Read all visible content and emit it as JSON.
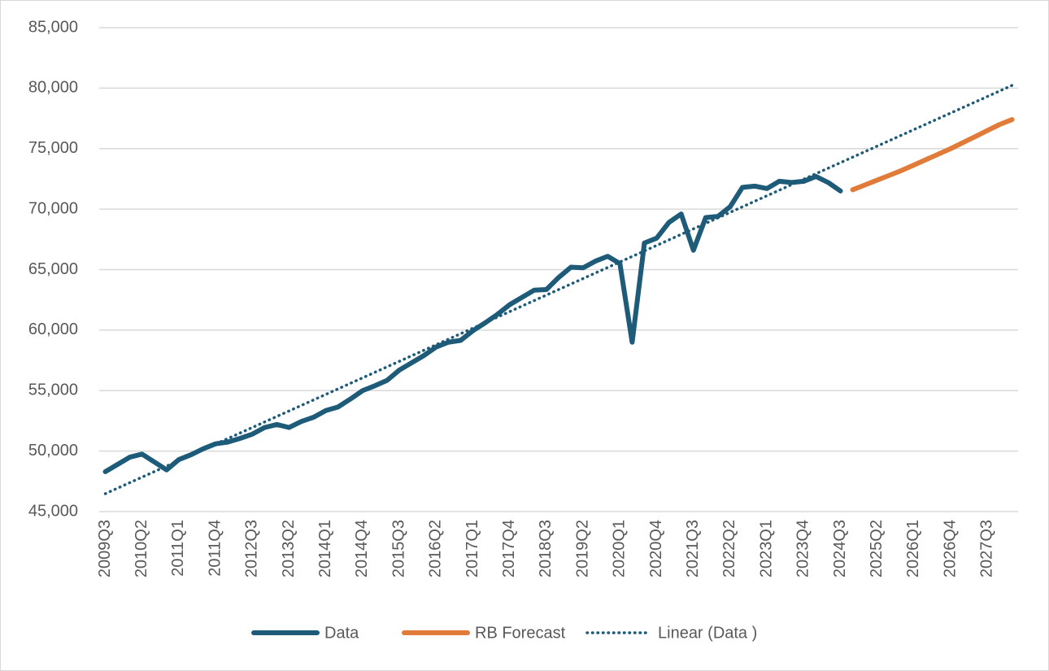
{
  "chart_data": {
    "type": "line",
    "categories": [
      "2009Q3",
      null,
      null,
      "2010Q2",
      null,
      null,
      "2011Q1",
      null,
      null,
      "2011Q4",
      null,
      null,
      "2012Q3",
      null,
      null,
      "2013Q2",
      null,
      null,
      "2014Q1",
      null,
      null,
      "2014Q4",
      null,
      null,
      "2015Q3",
      null,
      null,
      "2016Q2",
      null,
      null,
      "2017Q1",
      null,
      null,
      "2017Q4",
      null,
      null,
      "2018Q3",
      null,
      null,
      "2019Q2",
      null,
      null,
      "2020Q1",
      null,
      null,
      "2020Q4",
      null,
      null,
      "2021Q3",
      null,
      null,
      "2022Q2",
      null,
      null,
      "2023Q1",
      null,
      null,
      "2023Q4",
      null,
      null,
      "2024Q3",
      null,
      null,
      "2025Q2",
      null,
      null,
      "2026Q1",
      null,
      null,
      "2026Q4",
      null,
      null,
      "2027Q3",
      null,
      null
    ],
    "series": [
      {
        "name": "Data",
        "color": "#1d5b79",
        "style": "solid",
        "values": [
          48300,
          48900,
          49500,
          49750,
          49100,
          48450,
          49300,
          49700,
          50200,
          50600,
          50750,
          51050,
          51400,
          51950,
          52200,
          51950,
          52450,
          52800,
          53350,
          53650,
          54300,
          55000,
          55400,
          55850,
          56700,
          57300,
          57900,
          58600,
          59000,
          59150,
          59950,
          60600,
          61300,
          62100,
          62700,
          63300,
          63350,
          64350,
          65200,
          65150,
          65700,
          66100,
          65500,
          59000,
          67200,
          67600,
          68900,
          69600,
          66600,
          69300,
          69400,
          70200,
          71800,
          71900,
          71700,
          72300,
          72200,
          72300,
          72700,
          72200,
          71500,
          null,
          null,
          null,
          null,
          null,
          null,
          null,
          null,
          null,
          null,
          null,
          null,
          null,
          null
        ]
      },
      {
        "name": "RB Forecast",
        "color": "#e07b39",
        "style": "solid",
        "values": [
          null,
          null,
          null,
          null,
          null,
          null,
          null,
          null,
          null,
          null,
          null,
          null,
          null,
          null,
          null,
          null,
          null,
          null,
          null,
          null,
          null,
          null,
          null,
          null,
          null,
          null,
          null,
          null,
          null,
          null,
          null,
          null,
          null,
          null,
          null,
          null,
          null,
          null,
          null,
          null,
          null,
          null,
          null,
          null,
          null,
          null,
          null,
          null,
          null,
          null,
          null,
          null,
          null,
          null,
          null,
          null,
          null,
          null,
          null,
          null,
          null,
          71600,
          72000,
          72400,
          72800,
          73200,
          73650,
          74100,
          74550,
          75000,
          75500,
          76000,
          76500,
          77000,
          77400
        ]
      },
      {
        "name": "Linear (Data )",
        "color": "#1d5b79",
        "style": "dotted",
        "values": [
          46480,
          46936,
          47392,
          47848,
          48304,
          48760,
          49216,
          49672,
          50128,
          50584,
          51040,
          51496,
          51952,
          52408,
          52864,
          53320,
          53776,
          54232,
          54688,
          55144,
          55600,
          56056,
          56512,
          56968,
          57424,
          57880,
          58336,
          58792,
          59248,
          59704,
          60160,
          60616,
          61072,
          61528,
          61984,
          62440,
          62896,
          63352,
          63808,
          64264,
          64720,
          65176,
          65632,
          66088,
          66544,
          67000,
          67456,
          67912,
          68368,
          68824,
          69280,
          69736,
          70192,
          70648,
          71104,
          71560,
          72016,
          72472,
          72928,
          73384,
          73840,
          74296,
          74752,
          75208,
          75664,
          76120,
          76576,
          77032,
          77488,
          77944,
          78400,
          78856,
          79312,
          79768,
          80224
        ]
      }
    ],
    "ylim": [
      45000,
      85000
    ],
    "yticks": [
      {
        "value": 45000,
        "label": "45,000"
      },
      {
        "value": 50000,
        "label": "50,000"
      },
      {
        "value": 55000,
        "label": "55,000"
      },
      {
        "value": 60000,
        "label": "60,000"
      },
      {
        "value": 65000,
        "label": "65,000"
      },
      {
        "value": 70000,
        "label": "70,000"
      },
      {
        "value": 75000,
        "label": "75,000"
      },
      {
        "value": 80000,
        "label": "80,000"
      },
      {
        "value": 85000,
        "label": "85,000"
      }
    ],
    "grid": true,
    "legend": "bottom"
  }
}
